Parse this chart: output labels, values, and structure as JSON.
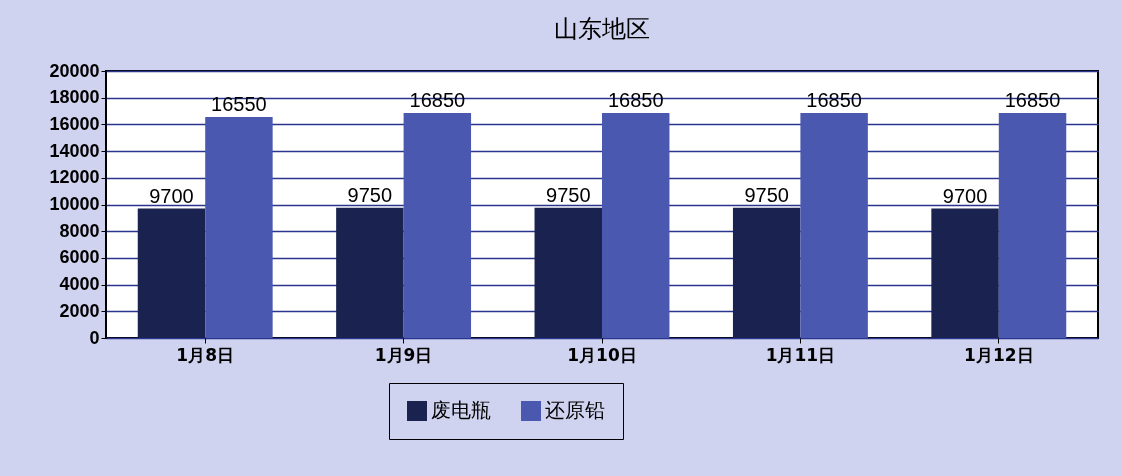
{
  "chart_data": {
    "type": "bar",
    "title": "山东地区",
    "categories": [
      "1月8日",
      "1月9日",
      "1月10日",
      "1月11日",
      "1月12日"
    ],
    "series": [
      {
        "name": "废电瓶",
        "color": "#1a2350",
        "values": [
          9700,
          9750,
          9750,
          9750,
          9700
        ]
      },
      {
        "name": "还原铅",
        "color": "#4a58b0",
        "values": [
          16550,
          16850,
          16850,
          16850,
          16850
        ]
      }
    ],
    "ylim": [
      0,
      20000
    ],
    "yticks": [
      0,
      2000,
      4000,
      6000,
      8000,
      10000,
      12000,
      14000,
      16000,
      18000,
      20000
    ],
    "grid": "y",
    "legend": "bottom",
    "data_labels": true
  }
}
